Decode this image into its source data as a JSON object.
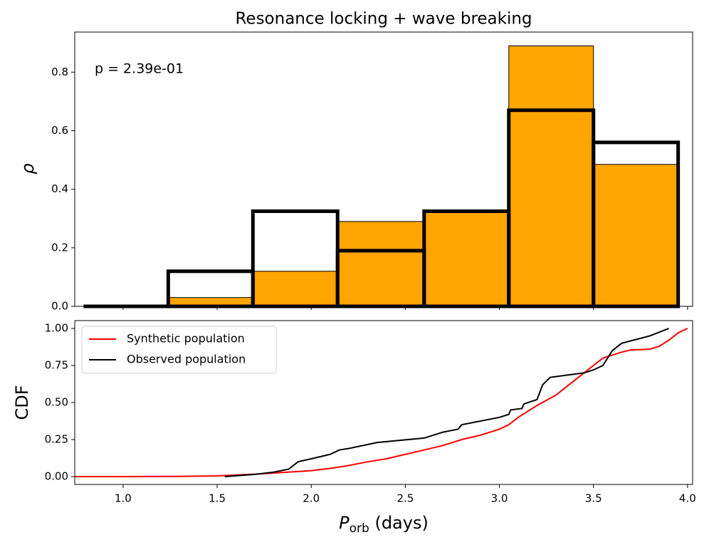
{
  "chart_data": [
    {
      "type": "histogram",
      "title": "Resonance locking + wave breaking",
      "ylabel": "ρ",
      "annotation": "p = 2.39e-01",
      "bins": [
        0.79,
        1.24,
        1.69,
        2.14,
        2.6,
        3.05,
        3.5,
        3.95
      ],
      "series": [
        {
          "color": "#ffa500",
          "edgecolor": "#000000",
          "filled": true,
          "values": [
            0,
            0.03,
            0.12,
            0.29,
            0.32,
            0.89,
            0.485
          ]
        },
        {
          "color": "#000000",
          "filled": false,
          "values": [
            0,
            0.12,
            0.325,
            0.19,
            0.325,
            0.67,
            0.56
          ]
        }
      ],
      "xlim": [
        0.743,
        4.027
      ],
      "ylim": [
        0,
        0.937
      ],
      "yticks": [
        {
          "value": 0,
          "label": "0.0"
        },
        0.2,
        0.4,
        0.6,
        0.8
      ]
    },
    {
      "type": "line",
      "ylabel": "CDF",
      "xlabel_parts": [
        "P",
        "orb",
        " (days)"
      ],
      "legend": "upper left",
      "series": [
        {
          "name": "Synthetic population",
          "color": "#ff0000",
          "x": [
            0.743,
            1.0,
            1.25,
            1.5,
            1.75,
            2.0,
            2.1,
            2.2,
            2.3,
            2.4,
            2.5,
            2.6,
            2.7,
            2.8,
            2.9,
            3.0,
            3.05,
            3.1,
            3.2,
            3.3,
            3.4,
            3.5,
            3.55,
            3.6,
            3.65,
            3.7,
            3.8,
            3.85,
            3.9,
            3.95,
            4.0
          ],
          "values": [
            0,
            0,
            0.001,
            0.005,
            0.02,
            0.04,
            0.055,
            0.075,
            0.1,
            0.12,
            0.15,
            0.18,
            0.21,
            0.25,
            0.28,
            0.32,
            0.35,
            0.4,
            0.48,
            0.55,
            0.65,
            0.75,
            0.8,
            0.82,
            0.84,
            0.855,
            0.86,
            0.88,
            0.92,
            0.97,
            1.0
          ]
        },
        {
          "name": "Observed population",
          "color": "#000000",
          "x": [
            1.54,
            1.7,
            1.8,
            1.88,
            1.93,
            2.0,
            2.1,
            2.15,
            2.2,
            2.35,
            2.6,
            2.7,
            2.78,
            2.8,
            3.0,
            3.05,
            3.06,
            3.12,
            3.13,
            3.2,
            3.23,
            3.27,
            3.45,
            3.5,
            3.55,
            3.6,
            3.65,
            3.8,
            3.9
          ],
          "values": [
            0,
            0.015,
            0.03,
            0.05,
            0.1,
            0.12,
            0.15,
            0.18,
            0.19,
            0.23,
            0.26,
            0.3,
            0.32,
            0.35,
            0.4,
            0.42,
            0.45,
            0.46,
            0.49,
            0.52,
            0.62,
            0.67,
            0.7,
            0.72,
            0.75,
            0.85,
            0.9,
            0.95,
            1.0
          ]
        }
      ],
      "xlim": [
        0.743,
        4.027
      ],
      "ylim": [
        -0.053,
        1.053
      ],
      "xticks": [
        {
          "value": 1,
          "label": "1.0"
        },
        1.5,
        {
          "value": 2,
          "label": "2.0"
        },
        2.5,
        {
          "value": 3,
          "label": "3.0"
        },
        3.5,
        {
          "value": 4,
          "label": "4.0"
        }
      ],
      "yticks": [
        {
          "value": 0,
          "label": "0.00"
        },
        0.25,
        {
          "value": 0.5,
          "label": "0.50"
        },
        0.75,
        {
          "value": 1,
          "label": "1.00"
        }
      ]
    }
  ]
}
